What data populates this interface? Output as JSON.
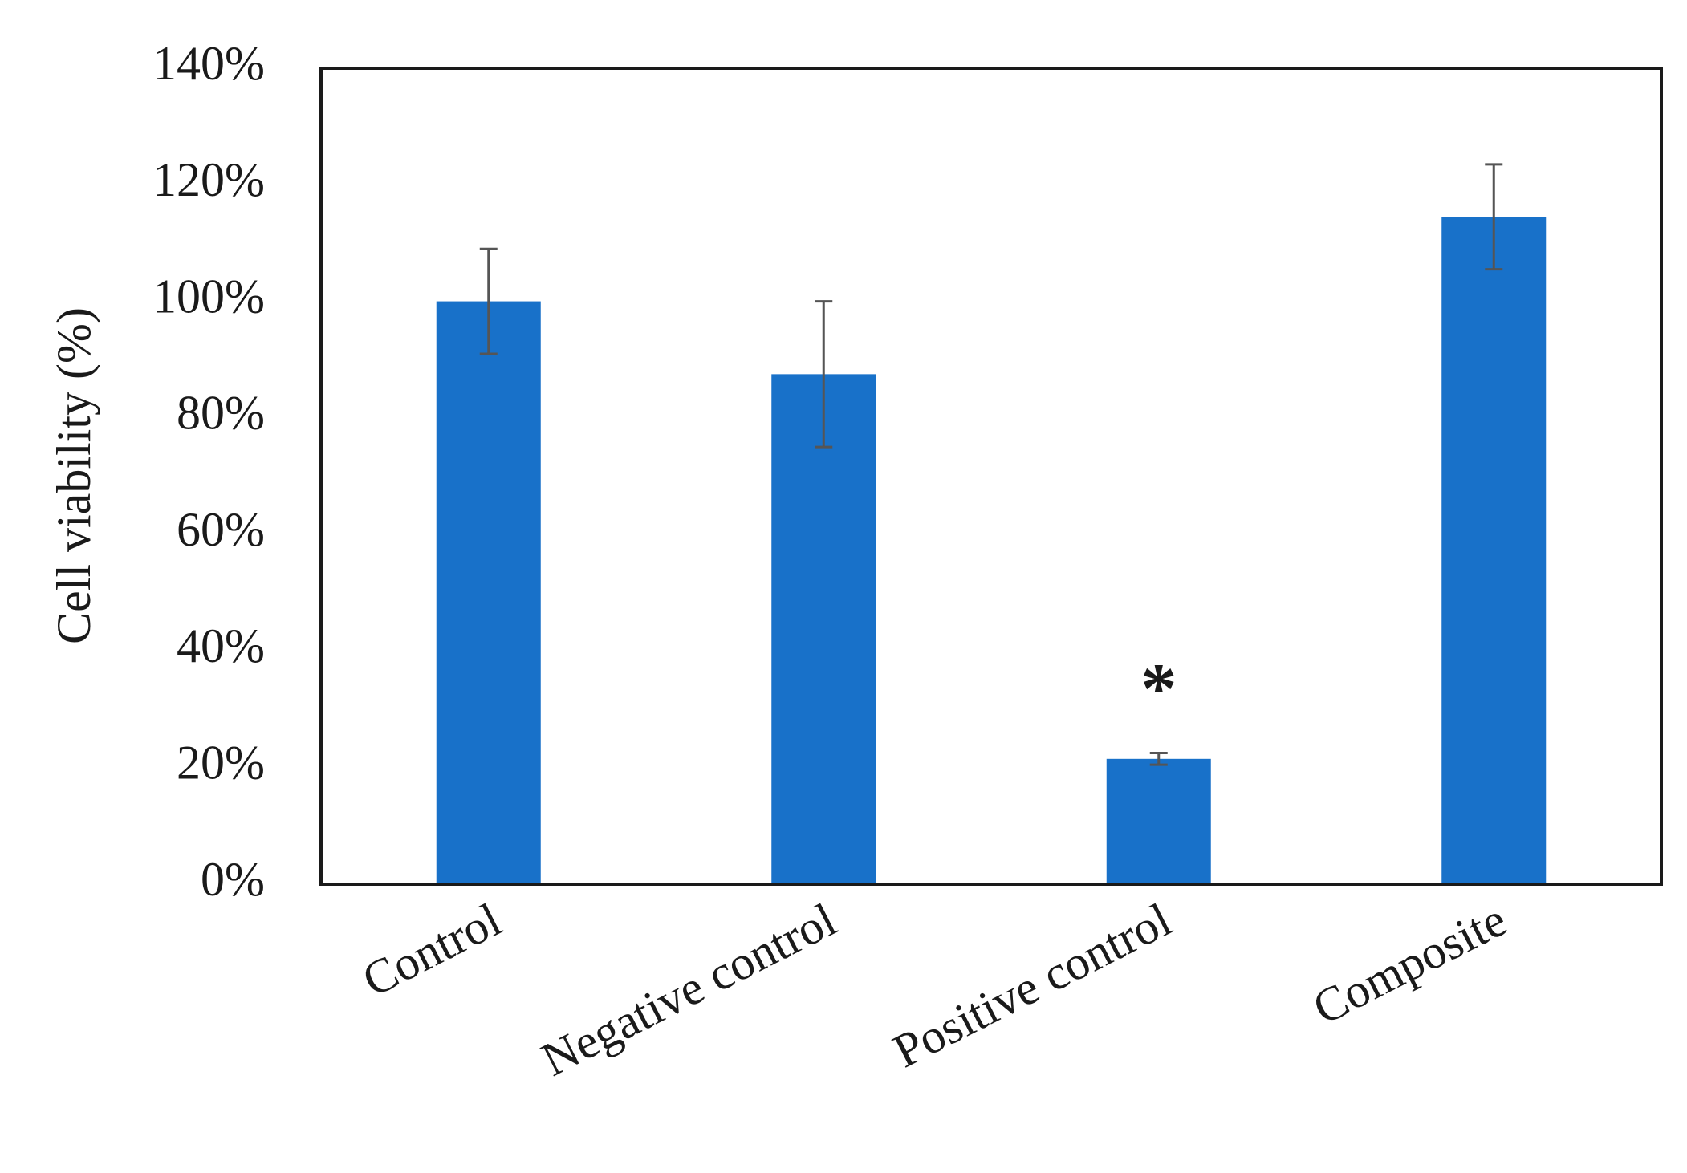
{
  "chart_data": {
    "type": "bar",
    "title": "",
    "xlabel": "",
    "ylabel": "Cell viability (%)",
    "categories": [
      "Control",
      "Negative control",
      "Positive control",
      "Composite"
    ],
    "values": [
      100,
      87.5,
      21.5,
      114.5
    ],
    "errors": [
      9,
      12.5,
      1,
      9
    ],
    "annotations": [
      "",
      "",
      "*",
      ""
    ],
    "ylim": [
      0,
      140
    ],
    "yticks": [
      0,
      20,
      40,
      60,
      80,
      100,
      120,
      140
    ],
    "ytick_labels": [
      "0%",
      "20%",
      "40%",
      "60%",
      "80%",
      "100%",
      "120%",
      "140%"
    ],
    "grid": false,
    "legend": false,
    "colors": {
      "bar": "#1871c9",
      "error_bar": "#555555",
      "frame": "#1a1a1a"
    }
  }
}
